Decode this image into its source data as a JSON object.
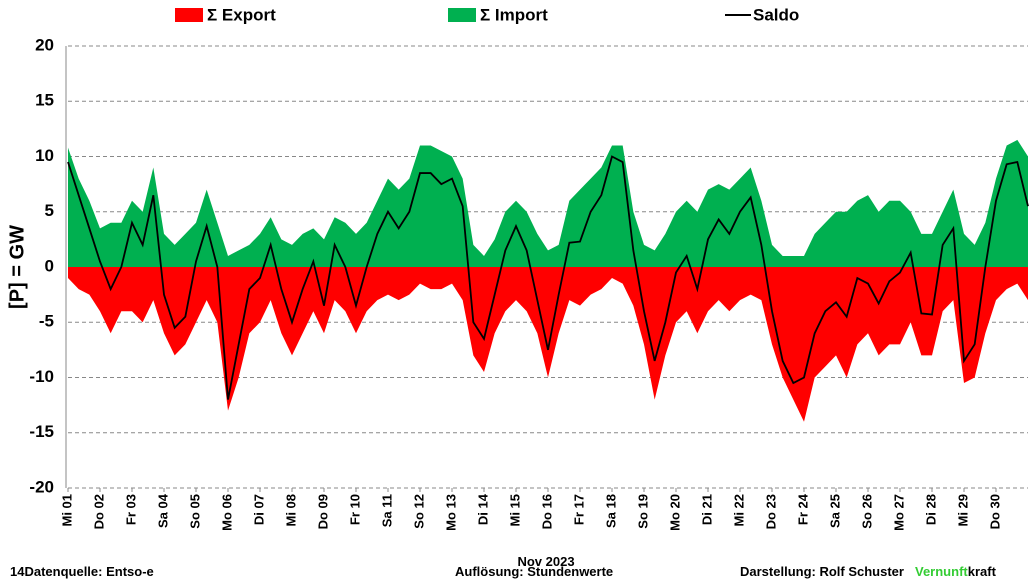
{
  "chart_data": {
    "type": "area",
    "y_label": "[P]  = GW",
    "x_label": "Nov 2023",
    "xlim": [
      0,
      720
    ],
    "ylim": [
      -20,
      20
    ],
    "yticks": [
      -20,
      -15,
      -10,
      -5,
      0,
      5,
      10,
      15,
      20
    ],
    "negative_tick_color": "#ff0000",
    "grid": true,
    "xticks": [
      {
        "value": 0,
        "label": "Mi 01"
      },
      {
        "value": 24,
        "label": "Do 02"
      },
      {
        "value": 48,
        "label": "Fr 03"
      },
      {
        "value": 72,
        "label": "Sa 04"
      },
      {
        "value": 96,
        "label": "So 05"
      },
      {
        "value": 120,
        "label": "Mo 06"
      },
      {
        "value": 144,
        "label": "Di 07"
      },
      {
        "value": 168,
        "label": "Mi 08"
      },
      {
        "value": 192,
        "label": "Do 09"
      },
      {
        "value": 216,
        "label": "Fr 10"
      },
      {
        "value": 240,
        "label": "Sa 11"
      },
      {
        "value": 264,
        "label": "So 12"
      },
      {
        "value": 288,
        "label": "Mo 13"
      },
      {
        "value": 312,
        "label": "Di 14"
      },
      {
        "value": 336,
        "label": "Mi 15"
      },
      {
        "value": 360,
        "label": "Do 16"
      },
      {
        "value": 384,
        "label": "Fr 17"
      },
      {
        "value": 408,
        "label": "Sa 18"
      },
      {
        "value": 432,
        "label": "So 19"
      },
      {
        "value": 456,
        "label": "Mo 20"
      },
      {
        "value": 480,
        "label": "Di 21"
      },
      {
        "value": 504,
        "label": "Mi 22"
      },
      {
        "value": 528,
        "label": "Do 23"
      },
      {
        "value": 552,
        "label": "Fr 24"
      },
      {
        "value": 576,
        "label": "Sa 25"
      },
      {
        "value": 600,
        "label": "So 26"
      },
      {
        "value": 624,
        "label": "Mo 27"
      },
      {
        "value": 648,
        "label": "Di 28"
      },
      {
        "value": 672,
        "label": "Mi 29"
      },
      {
        "value": 696,
        "label": "Do 30"
      }
    ],
    "x": [
      0,
      8,
      16,
      24,
      32,
      40,
      48,
      56,
      64,
      72,
      80,
      88,
      96,
      104,
      112,
      120,
      128,
      136,
      144,
      152,
      160,
      168,
      176,
      184,
      192,
      200,
      208,
      216,
      224,
      232,
      240,
      248,
      256,
      264,
      272,
      280,
      288,
      296,
      304,
      312,
      320,
      328,
      336,
      344,
      352,
      360,
      368,
      376,
      384,
      392,
      400,
      408,
      416,
      424,
      432,
      440,
      448,
      456,
      464,
      472,
      480,
      488,
      496,
      504,
      512,
      520,
      528,
      536,
      544,
      552,
      560,
      568,
      576,
      584,
      592,
      600,
      608,
      616,
      624,
      632,
      640,
      648,
      656,
      664,
      672,
      680,
      688,
      696,
      704,
      712,
      720
    ],
    "series": [
      {
        "name": "Σ Export",
        "color": "#ff0000",
        "kind": "area",
        "values": [
          -1,
          -2,
          -2.5,
          -4,
          -6,
          -4,
          -4,
          -5,
          -3,
          -6,
          -8,
          -7,
          -5,
          -3,
          -5,
          -13,
          -10,
          -6,
          -5,
          -3,
          -6,
          -8,
          -6,
          -4,
          -6,
          -3,
          -4,
          -6,
          -4,
          -3,
          -2.5,
          -3,
          -2.5,
          -1.5,
          -2,
          -2,
          -1.5,
          -3,
          -8,
          -9.5,
          -6,
          -4,
          -3,
          -4,
          -6,
          -10,
          -6,
          -3,
          -3.5,
          -2.5,
          -2,
          -1,
          -1.5,
          -3.5,
          -7,
          -12,
          -8,
          -5,
          -4,
          -6,
          -4,
          -3,
          -4,
          -3,
          -2.5,
          -3,
          -7,
          -10,
          -12,
          -14,
          -10,
          -9,
          -8,
          -10,
          -7,
          -6,
          -8,
          -7,
          -7,
          -5,
          -8,
          -8,
          -4,
          -3,
          -10.5,
          -10,
          -6,
          -3,
          -2,
          -1.5,
          -3
        ]
      },
      {
        "name": "Σ Import",
        "color": "#00b050",
        "kind": "area",
        "values": [
          10.8,
          8,
          6,
          3.5,
          4,
          4,
          6,
          5,
          9,
          3,
          2,
          3,
          4,
          7,
          4,
          1,
          1.5,
          2,
          3,
          4.5,
          2.5,
          2,
          3,
          3.5,
          2.5,
          4.5,
          4,
          3,
          4,
          6,
          8,
          7,
          8,
          11,
          11,
          10.5,
          10,
          8,
          2,
          1,
          2.5,
          5,
          6,
          5,
          3,
          1.5,
          2,
          6,
          7,
          8,
          9,
          11,
          11,
          5,
          2,
          1.5,
          3,
          5,
          6,
          5,
          7,
          7.5,
          7,
          8,
          9,
          6,
          2,
          1,
          1,
          1,
          3,
          4,
          5,
          5,
          6,
          6.5,
          5,
          6,
          6,
          5,
          3,
          3,
          5,
          7,
          3,
          2,
          4,
          8,
          11,
          11.5,
          10
        ]
      },
      {
        "name": "Saldo",
        "color": "#000000",
        "kind": "line",
        "values": [
          9.5,
          6.5,
          3.5,
          0.5,
          -2,
          0,
          4,
          2,
          6.5,
          -2.5,
          -5.5,
          -4.5,
          0.5,
          3.7,
          0,
          -12,
          -7,
          -2,
          -1,
          2,
          -2,
          -5,
          -2,
          0.5,
          -3.5,
          2,
          0,
          -3.5,
          0,
          3,
          5,
          3.5,
          5,
          8.5,
          8.5,
          7.5,
          8,
          5.5,
          -5,
          -6.5,
          -2.5,
          1.5,
          3.7,
          1.5,
          -3,
          -7.5,
          -2.5,
          2.2,
          2.3,
          5,
          6.5,
          10,
          9.5,
          1.5,
          -4,
          -8.5,
          -5,
          -0.5,
          1,
          -2,
          2.5,
          4.3,
          3,
          5,
          6.3,
          2,
          -4,
          -8.5,
          -10.5,
          -10,
          -6,
          -4,
          -3.2,
          -4.5,
          -1,
          -1.5,
          -3.3,
          -1.3,
          -0.5,
          1.3,
          -4.2,
          -4.3,
          2,
          3.5,
          -8.5,
          -7,
          0,
          6,
          9.3,
          9.5,
          5.5
        ]
      }
    ]
  },
  "footer": {
    "source": "14Datenquelle: Entso-e",
    "resolution": "Auflösung: Stundenwerte",
    "author": "Darstellung:  Rolf Schuster",
    "brand": [
      "Vernunft",
      "kraft"
    ],
    "brand_color": "#33cc33"
  }
}
